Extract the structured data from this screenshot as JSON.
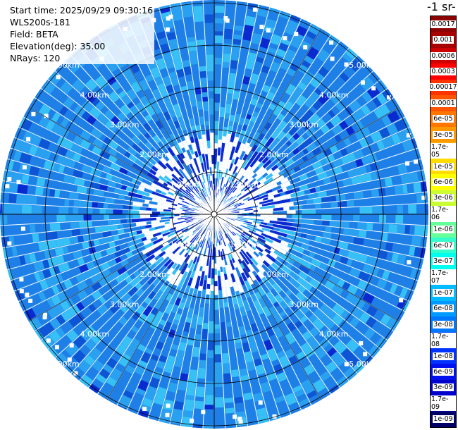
{
  "header": {
    "start_time": "Start time: 2025/09/29 09:30:16",
    "instrument": "WLS200s-181",
    "field": "Field: BETA",
    "elevation": "Elevation(deg): 35.00",
    "nrays": "NRays: 120"
  },
  "colorbar": {
    "unit_label": "-1 sr-",
    "levels": [
      {
        "label": "0.0017",
        "color": "#8b0000"
      },
      {
        "label": "0.001",
        "color": "#a70000"
      },
      {
        "label": "0.0006",
        "color": "#cc0000"
      },
      {
        "label": "0.0003",
        "color": "#ff0000"
      },
      {
        "label": "0.00017",
        "color": "#ff3300"
      },
      {
        "label": "0.0001",
        "color": "#ff5500"
      },
      {
        "label": "6e-05",
        "color": "#ff7700"
      },
      {
        "label": "3e-05",
        "color": "#ff9900"
      },
      {
        "label": "1.7e-05",
        "color": "#ffbb00"
      },
      {
        "label": "1e-05",
        "color": "#ffdd00"
      },
      {
        "label": "6e-06",
        "color": "#ffff00"
      },
      {
        "label": "3e-06",
        "color": "#ccff33"
      },
      {
        "label": "1.7e-06",
        "color": "#99ff66"
      },
      {
        "label": "1e-06",
        "color": "#66ff99"
      },
      {
        "label": "6e-07",
        "color": "#33ffcc"
      },
      {
        "label": "3e-07",
        "color": "#00ffee"
      },
      {
        "label": "1.7e-07",
        "color": "#00ddff"
      },
      {
        "label": "1e-07",
        "color": "#00bbff"
      },
      {
        "label": "6e-08",
        "color": "#0099ff"
      },
      {
        "label": "3e-08",
        "color": "#0077ff"
      },
      {
        "label": "1.7e-08",
        "color": "#0055ff"
      },
      {
        "label": "1e-08",
        "color": "#0033ff"
      },
      {
        "label": "6e-09",
        "color": "#0011ee"
      },
      {
        "label": "3e-09",
        "color": "#0000cc"
      },
      {
        "label": "1.7e-09",
        "color": "#00009a"
      },
      {
        "label": "1e-09",
        "color": "#000066"
      }
    ]
  },
  "map": {
    "range_rings": [
      "1.00km",
      "2.00km",
      "3.00km",
      "4.00km",
      "5.00km"
    ],
    "ring_label_placement": [
      "upper-left",
      "upper-right",
      "lower-left",
      "lower-right"
    ],
    "dominant_colors": [
      "#1e7fe6",
      "#2aa0f0",
      "#36c0f5",
      "#0e55d6",
      "#0a2ad0"
    ]
  }
}
